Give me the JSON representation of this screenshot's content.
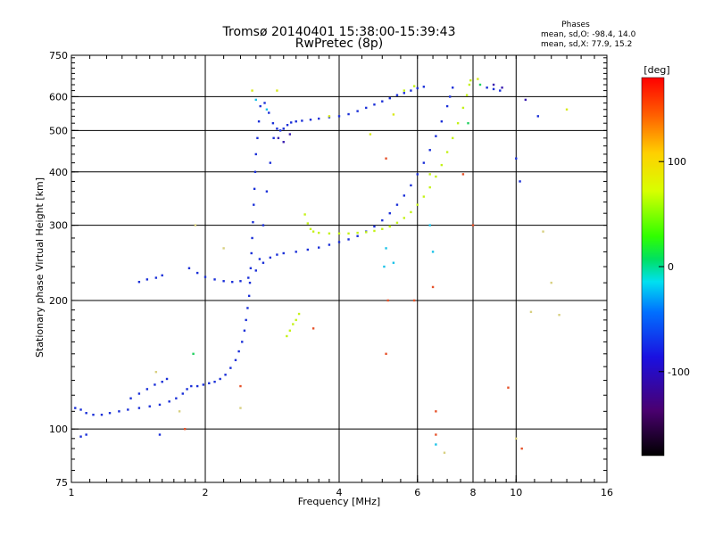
{
  "chart_data": {
    "type": "scatter",
    "title": "Tromsø 20140401 15:38:00-15:39:43",
    "subtitle": "RwPretec (8p)",
    "phases": {
      "heading": "Phases",
      "line_o": "mean, sd,O: -98.4, 14.0",
      "line_x": "mean, sd,X:  77.9, 15.2"
    },
    "xlabel": "Frequency [MHz]",
    "ylabel": "Stationary phase Virtual Height [km]",
    "x_scale": "log2",
    "y_scale": "log",
    "xlim": [
      1,
      16
    ],
    "ylim": [
      75,
      750
    ],
    "x_ticks": [
      {
        "v": 1,
        "label": "1"
      },
      {
        "v": 2,
        "label": "2"
      },
      {
        "v": 4,
        "label": "4"
      },
      {
        "v": 6,
        "label": "6"
      },
      {
        "v": 8,
        "label": "8"
      },
      {
        "v": 10,
        "label": "10"
      },
      {
        "v": 16,
        "label": "16"
      }
    ],
    "y_ticks": [
      {
        "v": 75,
        "label": "75"
      },
      {
        "v": 100,
        "label": "100"
      },
      {
        "v": 200,
        "label": "200"
      },
      {
        "v": 300,
        "label": "300"
      },
      {
        "v": 400,
        "label": "400"
      },
      {
        "v": 500,
        "label": "500"
      },
      {
        "v": 600,
        "label": "600"
      },
      {
        "v": 750,
        "label": "750"
      }
    ],
    "x_grid": [
      2,
      4,
      6,
      8,
      10
    ],
    "y_grid": [
      100,
      200,
      300,
      400,
      500,
      600
    ],
    "grid": true,
    "colorbar": {
      "label": "[deg]",
      "range": [
        -180,
        180
      ],
      "ticks": [
        {
          "v": 100,
          "label": "100"
        },
        {
          "v": 0,
          "label": "0"
        },
        {
          "v": -100,
          "label": "-100"
        }
      ]
    },
    "series": [
      {
        "phase": -98,
        "color": "#1a2fd8",
        "points": [
          [
            1.02,
            112
          ],
          [
            1.05,
            111
          ],
          [
            1.08,
            109
          ],
          [
            1.12,
            108
          ],
          [
            1.17,
            108
          ],
          [
            1.22,
            109
          ],
          [
            1.28,
            110
          ],
          [
            1.34,
            111
          ],
          [
            1.42,
            112
          ],
          [
            1.5,
            113
          ],
          [
            1.58,
            114
          ],
          [
            1.66,
            116
          ],
          [
            1.72,
            118
          ],
          [
            1.78,
            121
          ],
          [
            1.82,
            124
          ],
          [
            1.86,
            126
          ],
          [
            1.92,
            126
          ],
          [
            1.98,
            127
          ],
          [
            2.04,
            128
          ],
          [
            2.1,
            129
          ],
          [
            2.16,
            131
          ],
          [
            2.22,
            134
          ],
          [
            2.28,
            139
          ],
          [
            2.34,
            145
          ],
          [
            2.38,
            152
          ],
          [
            2.42,
            160
          ],
          [
            2.45,
            170
          ],
          [
            2.47,
            180
          ],
          [
            2.49,
            192
          ],
          [
            2.51,
            205
          ],
          [
            2.52,
            220
          ],
          [
            2.53,
            238
          ],
          [
            2.54,
            258
          ],
          [
            2.55,
            280
          ],
          [
            2.56,
            305
          ],
          [
            2.57,
            335
          ],
          [
            2.58,
            365
          ],
          [
            2.59,
            400
          ],
          [
            2.6,
            440
          ],
          [
            2.62,
            480
          ],
          [
            2.64,
            525
          ],
          [
            2.66,
            570
          ],
          [
            2.72,
            580
          ],
          [
            2.78,
            550
          ],
          [
            2.84,
            520
          ],
          [
            2.9,
            505
          ],
          [
            2.95,
            500
          ],
          [
            3.0,
            505
          ],
          [
            3.06,
            515
          ],
          [
            3.12,
            522
          ],
          [
            3.2,
            525
          ],
          [
            3.3,
            527
          ],
          [
            3.45,
            530
          ],
          [
            3.6,
            533
          ],
          [
            3.8,
            537
          ],
          [
            4.0,
            540
          ],
          [
            4.2,
            546
          ],
          [
            4.4,
            555
          ],
          [
            4.6,
            565
          ],
          [
            4.8,
            575
          ],
          [
            5.0,
            585
          ],
          [
            5.2,
            595
          ],
          [
            5.4,
            605
          ],
          [
            5.6,
            612
          ],
          [
            5.8,
            620
          ],
          [
            6.0,
            628
          ],
          [
            6.2,
            633
          ],
          [
            1.36,
            118
          ],
          [
            1.42,
            121
          ],
          [
            1.48,
            124
          ],
          [
            1.54,
            127
          ],
          [
            1.6,
            129
          ],
          [
            1.64,
            131
          ],
          [
            1.42,
            221
          ],
          [
            1.48,
            224
          ],
          [
            1.55,
            226
          ],
          [
            1.6,
            229
          ],
          [
            1.84,
            238
          ],
          [
            1.92,
            232
          ],
          [
            2.0,
            227
          ],
          [
            2.1,
            224
          ],
          [
            2.2,
            222
          ],
          [
            2.3,
            221
          ],
          [
            2.4,
            222
          ],
          [
            2.5,
            226
          ],
          [
            2.6,
            235
          ],
          [
            2.7,
            245
          ],
          [
            2.8,
            252
          ],
          [
            2.9,
            256
          ],
          [
            3.0,
            258
          ],
          [
            3.2,
            260
          ],
          [
            3.4,
            263
          ],
          [
            3.6,
            266
          ],
          [
            3.8,
            270
          ],
          [
            4.0,
            274
          ],
          [
            4.2,
            278
          ],
          [
            4.4,
            283
          ],
          [
            4.6,
            290
          ],
          [
            4.8,
            298
          ],
          [
            5.0,
            308
          ],
          [
            5.2,
            320
          ],
          [
            5.4,
            335
          ],
          [
            5.6,
            352
          ],
          [
            5.8,
            372
          ],
          [
            6.0,
            395
          ],
          [
            6.2,
            420
          ],
          [
            6.4,
            450
          ],
          [
            6.6,
            485
          ],
          [
            6.8,
            525
          ],
          [
            7.0,
            570
          ],
          [
            7.1,
            600
          ],
          [
            7.2,
            630
          ],
          [
            2.65,
            250
          ],
          [
            2.7,
            300
          ],
          [
            2.75,
            360
          ],
          [
            2.8,
            420
          ],
          [
            2.85,
            480
          ],
          [
            8.6,
            630
          ],
          [
            8.9,
            625
          ],
          [
            9.2,
            620
          ],
          [
            10.0,
            430
          ],
          [
            10.2,
            380
          ],
          [
            11.2,
            540
          ],
          [
            1.05,
            96
          ],
          [
            1.08,
            97
          ],
          [
            1.58,
            97
          ]
        ]
      },
      {
        "phase": 82,
        "color": "#c4f218",
        "points": [
          [
            3.35,
            318
          ],
          [
            3.4,
            303
          ],
          [
            3.45,
            294
          ],
          [
            3.5,
            290
          ],
          [
            3.6,
            288
          ],
          [
            3.8,
            287
          ],
          [
            4.0,
            287
          ],
          [
            4.2,
            287
          ],
          [
            4.4,
            288
          ],
          [
            4.6,
            289
          ],
          [
            4.8,
            291
          ],
          [
            5.0,
            294
          ],
          [
            5.2,
            298
          ],
          [
            5.4,
            304
          ],
          [
            5.6,
            312
          ],
          [
            5.8,
            322
          ],
          [
            6.0,
            335
          ],
          [
            6.2,
            350
          ],
          [
            6.4,
            368
          ],
          [
            6.6,
            390
          ],
          [
            6.8,
            415
          ],
          [
            7.0,
            445
          ],
          [
            7.2,
            480
          ],
          [
            7.4,
            520
          ],
          [
            7.6,
            565
          ],
          [
            7.75,
            605
          ],
          [
            7.85,
            640
          ],
          [
            7.9,
            655
          ],
          [
            3.05,
            165
          ],
          [
            3.1,
            170
          ],
          [
            3.15,
            176
          ],
          [
            3.2,
            180
          ],
          [
            3.25,
            186
          ],
          [
            5.6,
            620
          ],
          [
            5.9,
            635
          ],
          [
            6.4,
            395
          ]
        ]
      },
      {
        "phase": 40,
        "color": "#d8ea1a",
        "points": [
          [
            2.55,
            620
          ],
          [
            2.9,
            620
          ],
          [
            3.8,
            540
          ],
          [
            4.7,
            490
          ],
          [
            5.3,
            545
          ],
          [
            8.2,
            660
          ],
          [
            13.0,
            560
          ]
        ]
      },
      {
        "phase": 150,
        "color": "#e6522a",
        "points": [
          [
            1.8,
            100
          ],
          [
            2.4,
            126
          ],
          [
            3.5,
            172
          ],
          [
            5.1,
            150
          ],
          [
            5.15,
            200
          ],
          [
            5.1,
            430
          ],
          [
            5.9,
            200
          ],
          [
            6.5,
            215
          ],
          [
            6.6,
            97
          ],
          [
            6.6,
            110
          ],
          [
            7.6,
            395
          ],
          [
            8.0,
            300
          ],
          [
            9.6,
            125
          ],
          [
            10.3,
            90
          ]
        ]
      },
      {
        "phase": -10,
        "color": "#1ac2e8",
        "points": [
          [
            2.6,
            590
          ],
          [
            2.75,
            560
          ],
          [
            5.05,
            240
          ],
          [
            5.1,
            265
          ],
          [
            5.3,
            245
          ],
          [
            6.4,
            300
          ],
          [
            6.5,
            260
          ],
          [
            6.6,
            92
          ]
        ]
      },
      {
        "phase": 30,
        "color": "#22d060",
        "points": [
          [
            1.88,
            150
          ],
          [
            7.8,
            520
          ],
          [
            8.3,
            640
          ]
        ]
      },
      {
        "phase": 60,
        "color": "#d8d080",
        "points": [
          [
            1.55,
            136
          ],
          [
            1.75,
            110
          ],
          [
            1.9,
            300
          ],
          [
            2.2,
            265
          ],
          [
            2.4,
            112
          ],
          [
            6.9,
            88
          ],
          [
            10.0,
            95
          ],
          [
            10.8,
            188
          ],
          [
            11.5,
            290
          ],
          [
            12.0,
            220
          ],
          [
            12.5,
            185
          ]
        ]
      },
      {
        "phase": -120,
        "color": "#3a1eb0",
        "points": [
          [
            2.92,
            480
          ],
          [
            3.0,
            470
          ],
          [
            3.1,
            490
          ],
          [
            8.9,
            640
          ],
          [
            9.3,
            630
          ],
          [
            10.5,
            590
          ]
        ]
      }
    ]
  }
}
